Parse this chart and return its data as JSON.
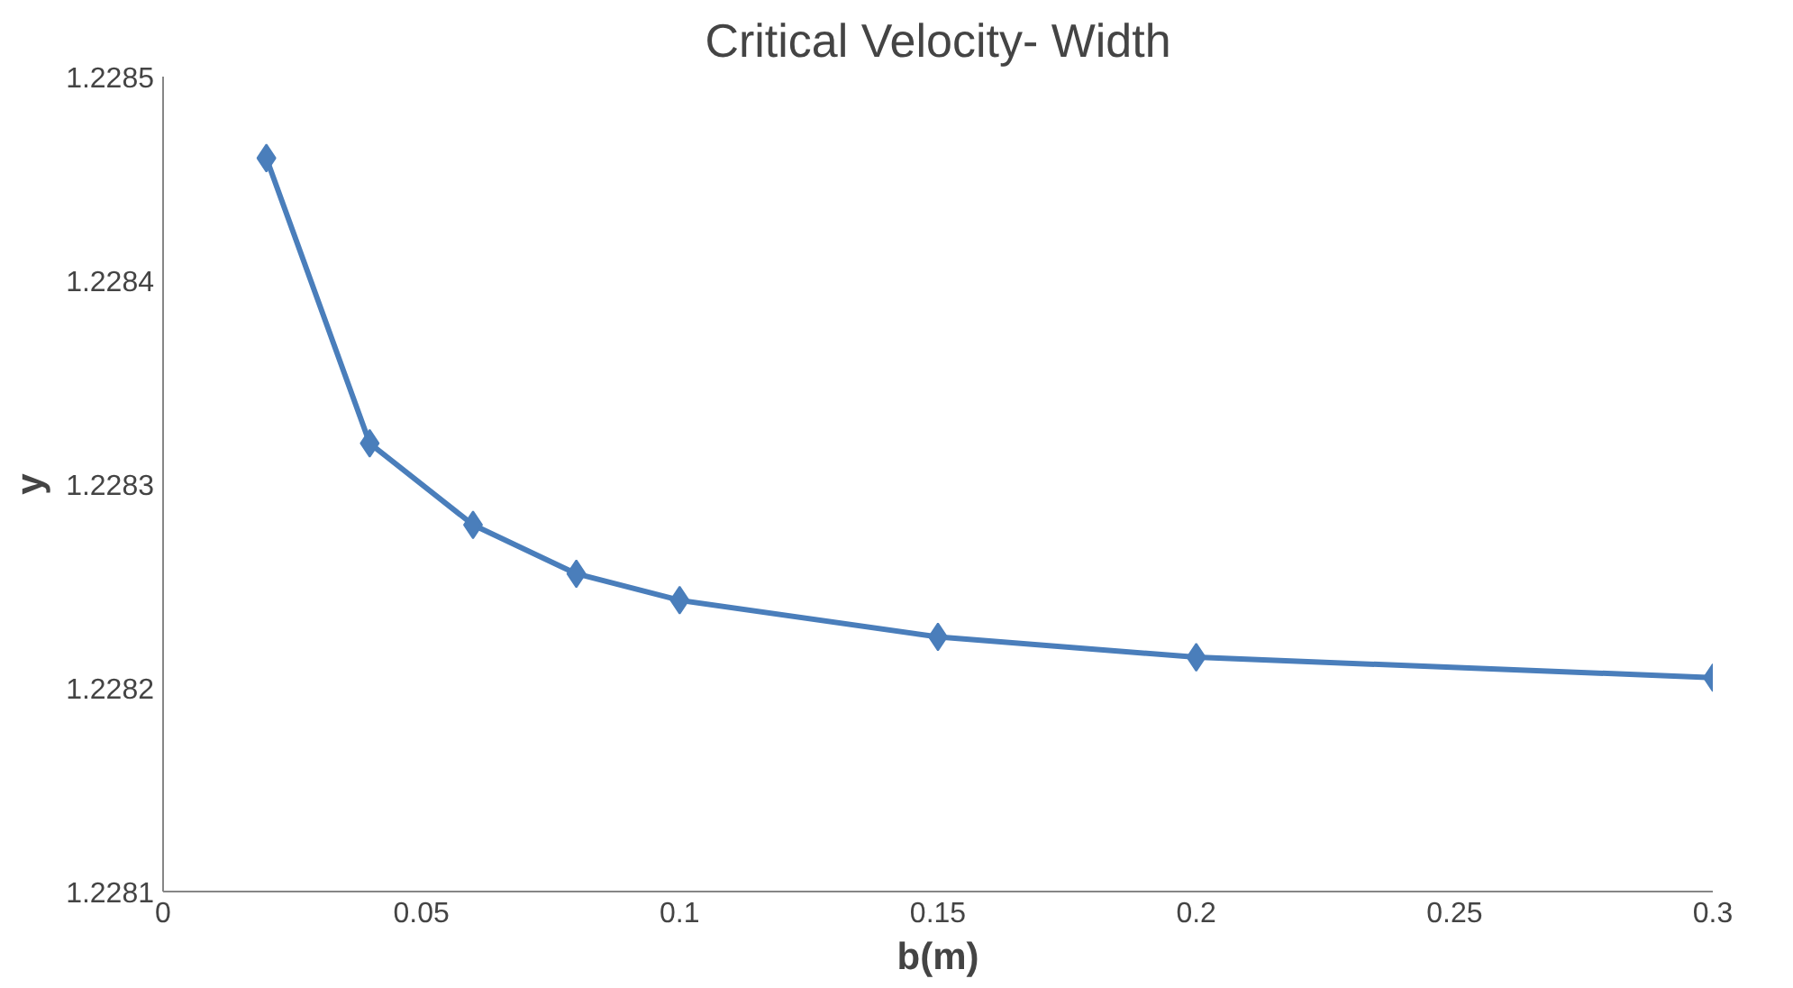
{
  "chart_data": {
    "type": "line",
    "title": "Critical Velocity- Width",
    "xlabel": "b(m)",
    "ylabel": "y",
    "x": [
      0.02,
      0.04,
      0.06,
      0.08,
      0.1,
      0.15,
      0.2,
      0.3
    ],
    "series": [
      {
        "color": "#4a7ebb",
        "values": [
          1.22846,
          1.22832,
          1.22828,
          1.228256,
          1.228243,
          1.228225,
          1.228215,
          1.228205
        ]
      }
    ],
    "xlim": [
      0,
      0.3
    ],
    "ylim": [
      1.2281,
      1.2285
    ],
    "xticks": [
      0,
      0.05,
      0.1,
      0.15,
      0.2,
      0.25,
      0.3
    ],
    "yticks": [
      1.2281,
      1.2282,
      1.2283,
      1.2284,
      1.2285
    ],
    "marker": "diamond",
    "line_style": "solid"
  }
}
